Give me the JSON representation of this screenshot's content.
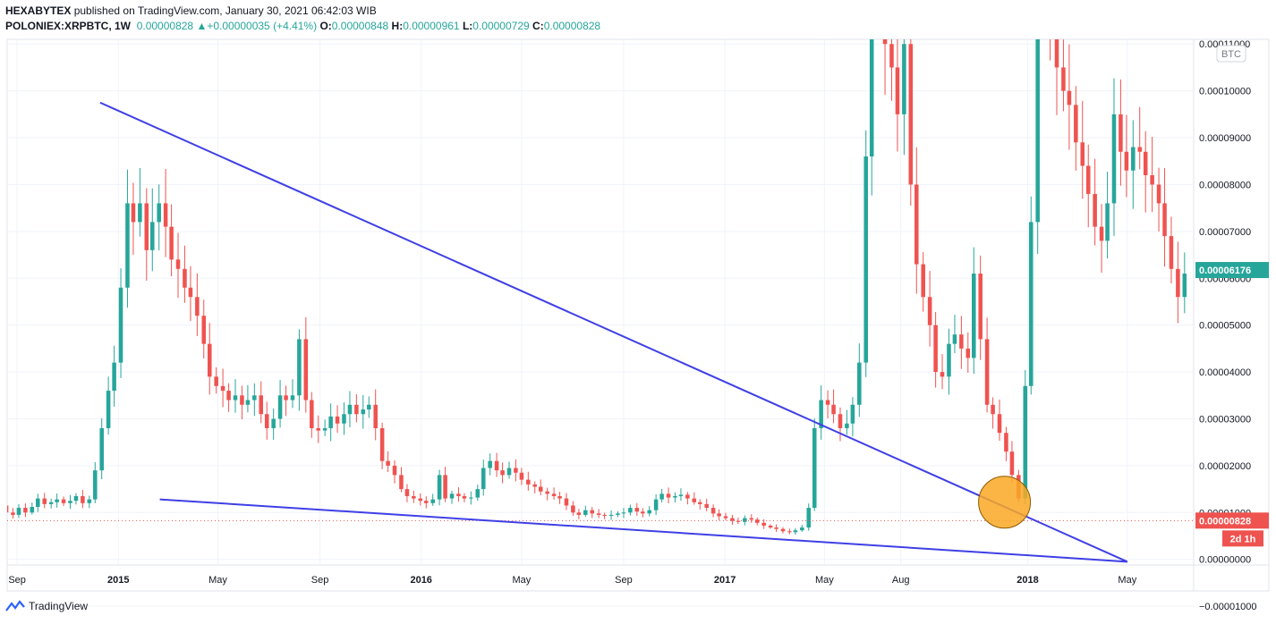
{
  "header": {
    "publisher": "HEXABYTEX",
    "published_text": "published on TradingView.com, January 30, 2021 06:42:03 WIB",
    "symbol": "POLONIEX:XRPBTC, 1W",
    "last": "0.00000828",
    "change": "+0.00000035 (+4.41%)",
    "o_label": "O:",
    "o_value": "0.00000848",
    "h_label": "H:",
    "h_value": "0.00000961",
    "l_label": "L:",
    "l_value": "0.00000729",
    "c_label": "C:",
    "c_value": "0.00000828"
  },
  "footer": {
    "brand": "TradingView"
  },
  "colors": {
    "up": "#26a69a",
    "down": "#ef5350",
    "trendline": "#3f3fe6",
    "circle_fill": "#f9a825",
    "grid": "#f0f3fa",
    "axis_text": "#131722"
  },
  "chart_data": {
    "type": "candlestick",
    "y_unit": "BTC",
    "ylim": [
      -1.2e-06,
      0.000111
    ],
    "y_ticks": [
      -1e-05,
      0,
      1e-05,
      2e-05,
      3e-05,
      4e-05,
      5e-05,
      6e-05,
      7e-05,
      8e-05,
      9e-05,
      0.0001,
      0.00011
    ],
    "y_tick_labels": [
      "−0.00001000",
      "0.00000000",
      "0.00001000",
      "0.00002000",
      "0.00003000",
      "0.00004000",
      "0.00005000",
      "0.00006000",
      "0.00007000",
      "0.00008000",
      "0.00009000",
      "0.00010000",
      "0.00011000"
    ],
    "x_ticks": [
      {
        "label": "Sep",
        "date": "2014-09-01"
      },
      {
        "label": "2015",
        "date": "2015-01-01"
      },
      {
        "label": "May",
        "date": "2015-05-01"
      },
      {
        "label": "Sep",
        "date": "2015-09-01"
      },
      {
        "label": "2016",
        "date": "2016-01-01"
      },
      {
        "label": "May",
        "date": "2016-05-01"
      },
      {
        "label": "Sep",
        "date": "2016-09-01"
      },
      {
        "label": "2017",
        "date": "2017-01-01"
      },
      {
        "label": "May",
        "date": "2017-05-01"
      },
      {
        "label": "Aug",
        "date": "2017-08-01"
      },
      {
        "label": "2018",
        "date": "2018-01-01"
      },
      {
        "label": "May",
        "date": "2018-05-01"
      }
    ],
    "price_labels": [
      {
        "value": 6.176e-05,
        "text": "0.00006176",
        "color": "#26a69a"
      },
      {
        "value": 8.28e-06,
        "text": "0.00000828",
        "color": "#ef5350"
      }
    ],
    "countdown": "2d 1h",
    "grid": true,
    "candle_x_range": [
      "2014-08-04",
      "2018-07-09"
    ],
    "candle_closes": [
      1.38e-05,
      1.15e-05,
      1e-05,
      9.5e-06,
      1.1e-05,
      1e-05,
      1.12e-05,
      1.3e-05,
      1.18e-05,
      1.22e-05,
      1.28e-05,
      1.2e-05,
      1.25e-05,
      1.35e-05,
      1.2e-05,
      1.28e-05,
      1.9e-05,
      2.8e-05,
      3.6e-05,
      4.2e-05,
      5.8e-05,
      7.6e-05,
      7.2e-05,
      7.6e-05,
      6.6e-05,
      7.2e-05,
      7.6e-05,
      7.1e-05,
      6.4e-05,
      6.2e-05,
      5.8e-05,
      5.6e-05,
      5.2e-05,
      4.6e-05,
      3.9e-05,
      3.7e-05,
      3.6e-05,
      3.4e-05,
      3.5e-05,
      3.3e-05,
      3.4e-05,
      3.5e-05,
      3.1e-05,
      2.8e-05,
      3e-05,
      3.5e-05,
      3.4e-05,
      3.5e-05,
      4.7e-05,
      3.4e-05,
      2.8e-05,
      2.75e-05,
      2.8e-05,
      3.05e-05,
      2.9e-05,
      3.1e-05,
      3.3e-05,
      3.1e-05,
      3.2e-05,
      3.3e-05,
      2.8e-05,
      2.1e-05,
      2e-05,
      1.8e-05,
      1.5e-05,
      1.35e-05,
      1.3e-05,
      1.25e-05,
      1.2e-05,
      1.28e-05,
      1.8e-05,
      1.3e-05,
      1.4e-05,
      1.35e-05,
      1.3e-05,
      1.32e-05,
      1.5e-05,
      1.95e-05,
      2.1e-05,
      1.9e-05,
      1.8e-05,
      1.95e-05,
      1.85e-05,
      1.7e-05,
      1.6e-05,
      1.55e-05,
      1.45e-05,
      1.4e-05,
      1.35e-05,
      1.3e-05,
      1.15e-05,
      1e-05,
      9.5e-06,
      1.05e-05,
      9.8e-06,
      9.5e-06,
      9.3e-06,
      9.5e-06,
      9.8e-06,
      1e-05,
      1.1e-05,
      1.02e-05,
      9.8e-06,
      1.05e-05,
      1.28e-05,
      1.4e-05,
      1.32e-05,
      1.35e-05,
      1.38e-05,
      1.3e-05,
      1.22e-05,
      1.18e-05,
      1.1e-05,
      9.8e-06,
      9.2e-06,
      8.8e-06,
      8.2e-06,
      8e-06,
      8.8e-06,
      8.5e-06,
      7.8e-06,
      7.2e-06,
      6.8e-06,
      6.5e-06,
      6e-06,
      5.8e-06,
      6.2e-06,
      6.8e-06,
      1.1e-05,
      2.8e-05,
      3.4e-05,
      3.3e-05,
      3.1e-05,
      2.8e-05,
      2.9e-05,
      3.3e-05,
      4.2e-05,
      8.6e-05,
      0.00012,
      0.00013,
      0.00011,
      0.000105,
      9.5e-05,
      0.00011,
      8e-05,
      6.3e-05,
      5.6e-05,
      5e-05,
      4e-05,
      3.9e-05,
      4.6e-05,
      4.8e-05,
      4.5e-05,
      4.3e-05,
      6.1e-05,
      4.7e-05,
      3.3e-05,
      3.1e-05,
      2.7e-05,
      2.3e-05,
      1.8e-05,
      1.3e-05,
      3.7e-05,
      7.2e-05,
      0.00015,
      0.00013,
      0.000115,
      0.000105,
      0.0001,
      9.7e-05,
      8.9e-05,
      8.4e-05,
      7.8e-05,
      7.1e-05,
      6.8e-05,
      7.6e-05,
      9.5e-05,
      8.7e-05,
      8.3e-05,
      8.8e-05,
      8.7e-05,
      8.2e-05,
      8e-05,
      7.6e-05,
      6.9e-05,
      6.2e-05,
      5.6e-05,
      6.1e-05
    ],
    "trendlines": [
      {
        "from": {
          "date": "2014-12-10",
          "value": 9.75e-05
        },
        "to": {
          "date": "2018-05-01",
          "value": -5e-07
        }
      },
      {
        "from": {
          "date": "2015-02-20",
          "value": 1.28e-05
        },
        "to": {
          "date": "2018-05-01",
          "value": -5e-07
        }
      }
    ],
    "annotations": [
      {
        "type": "circle",
        "center": {
          "date": "2017-12-04",
          "value": 1.22e-05
        }
      }
    ]
  }
}
